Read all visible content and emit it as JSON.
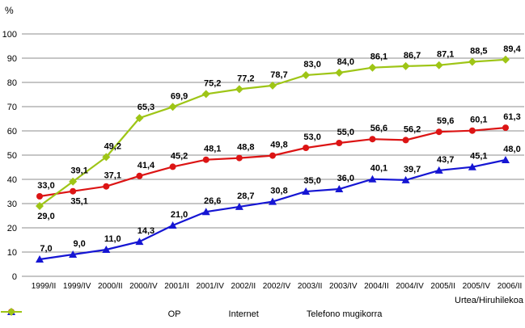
{
  "chart_data": {
    "type": "line",
    "title": "",
    "ylabel": "%",
    "xlabel": "Urtea/Hiruhilekoa",
    "categories": [
      "1999/II",
      "1999/IV",
      "2000/II",
      "2000/IV",
      "2001/II",
      "2001/IV",
      "2002/II",
      "2002/IV",
      "2003/II",
      "2003/IV",
      "2004/II",
      "2004/IV",
      "2005/II",
      "2005/IV",
      "2006/II"
    ],
    "ylim": [
      0,
      100
    ],
    "ytick_step": 10,
    "grid": "horizontal-gray",
    "legend_position": "bottom-center",
    "decimal_separator": ",",
    "gridline_color": "#8E8E8E",
    "series": [
      {
        "name": "OP",
        "color": "#DC1414",
        "marker": "circle",
        "values": [
          33.0,
          35.1,
          37.1,
          41.4,
          45.2,
          48.1,
          48.8,
          49.8,
          53.0,
          55.0,
          56.6,
          56.2,
          59.6,
          60.1,
          61.3
        ]
      },
      {
        "name": "Internet",
        "color": "#1515D3",
        "marker": "triangle",
        "values": [
          7.0,
          9.0,
          11.0,
          14.3,
          21.0,
          26.6,
          28.7,
          30.8,
          35.0,
          36.0,
          40.1,
          39.7,
          43.7,
          45.1,
          48.0
        ]
      },
      {
        "name": "Telefono mugikorra",
        "color": "#9EC516",
        "marker": "diamond",
        "values": [
          29.0,
          39.1,
          49.2,
          65.3,
          69.9,
          75.2,
          77.2,
          78.7,
          83.0,
          84.0,
          86.1,
          86.7,
          87.1,
          88.5,
          89.4
        ]
      }
    ]
  }
}
